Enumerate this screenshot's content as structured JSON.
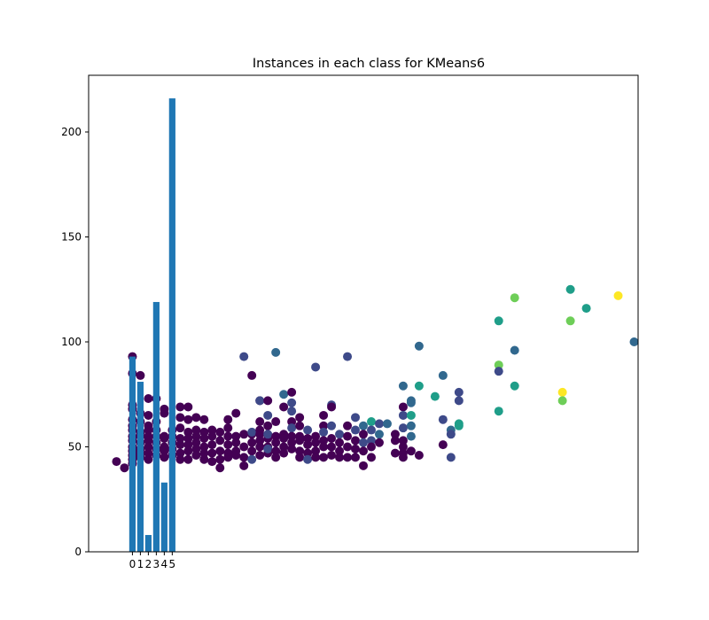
{
  "chart_data": {
    "type": "bar",
    "title": "Instances in each class for KMeans6",
    "xlabel": "",
    "ylabel": "",
    "categories": [
      "0",
      "1",
      "2",
      "3",
      "4",
      "5"
    ],
    "values": [
      93,
      81,
      8,
      119,
      33,
      216
    ],
    "bar_color": "#1f77b4",
    "ylim": [
      0,
      227
    ],
    "xlim": [
      -5.5,
      63.5
    ],
    "yticks": [
      0,
      50,
      100,
      150,
      200
    ],
    "grid": false,
    "scatter_overlay": {
      "colormap": "viridis",
      "points": [
        [
          -2,
          43,
          0
        ],
        [
          -1,
          40,
          0
        ],
        [
          0,
          93,
          0
        ],
        [
          0,
          85,
          0
        ],
        [
          0,
          70,
          0
        ],
        [
          0,
          68,
          0
        ],
        [
          0,
          63,
          0
        ],
        [
          0,
          60,
          0
        ],
        [
          0,
          58,
          0
        ],
        [
          0,
          55,
          0
        ],
        [
          0,
          53,
          0
        ],
        [
          0,
          50,
          0
        ],
        [
          0,
          48,
          0
        ],
        [
          0,
          46,
          0
        ],
        [
          0,
          44,
          0
        ],
        [
          0,
          42,
          0
        ],
        [
          1,
          84,
          0
        ],
        [
          1,
          66,
          0
        ],
        [
          1,
          62,
          0
        ],
        [
          1,
          57,
          0
        ],
        [
          1,
          55,
          0
        ],
        [
          1,
          52,
          0
        ],
        [
          1,
          49,
          0
        ],
        [
          1,
          47,
          0
        ],
        [
          1,
          45,
          0
        ],
        [
          2,
          73,
          0
        ],
        [
          2,
          65,
          0
        ],
        [
          2,
          60,
          0
        ],
        [
          2,
          58,
          0
        ],
        [
          2,
          55,
          0
        ],
        [
          2,
          53,
          0
        ],
        [
          2,
          50,
          0
        ],
        [
          2,
          47,
          0
        ],
        [
          2,
          44,
          0
        ],
        [
          3,
          73,
          0
        ],
        [
          3,
          62,
          0
        ],
        [
          3,
          58,
          0
        ],
        [
          3,
          55,
          0
        ],
        [
          3,
          52,
          0
        ],
        [
          3,
          49,
          0
        ],
        [
          3,
          46,
          0
        ],
        [
          4,
          68,
          0
        ],
        [
          4,
          66,
          0
        ],
        [
          4,
          55,
          0
        ],
        [
          4,
          54,
          0
        ],
        [
          4,
          50,
          0
        ],
        [
          4,
          48,
          0
        ],
        [
          4,
          45,
          0
        ],
        [
          5,
          58,
          0
        ],
        [
          5,
          55,
          0
        ],
        [
          5,
          52,
          0
        ],
        [
          5,
          49,
          0
        ],
        [
          5,
          46,
          0
        ],
        [
          6,
          69,
          0
        ],
        [
          6,
          64,
          0
        ],
        [
          6,
          59,
          0
        ],
        [
          6,
          54,
          0
        ],
        [
          6,
          51,
          0
        ],
        [
          6,
          47,
          0
        ],
        [
          6,
          44,
          0
        ],
        [
          7,
          69,
          0
        ],
        [
          7,
          63,
          0
        ],
        [
          7,
          57,
          0
        ],
        [
          7,
          54,
          0
        ],
        [
          7,
          51,
          0
        ],
        [
          7,
          48,
          0
        ],
        [
          7,
          44,
          0
        ],
        [
          8,
          64,
          0
        ],
        [
          8,
          58,
          0
        ],
        [
          8,
          55,
          0
        ],
        [
          8,
          52,
          0
        ],
        [
          8,
          49,
          0
        ],
        [
          8,
          46,
          0
        ],
        [
          9,
          63,
          0
        ],
        [
          9,
          57,
          0
        ],
        [
          9,
          54,
          0
        ],
        [
          9,
          50,
          0
        ],
        [
          9,
          47,
          0
        ],
        [
          9,
          44,
          0
        ],
        [
          10,
          58,
          0
        ],
        [
          10,
          55,
          0
        ],
        [
          10,
          51,
          0
        ],
        [
          10,
          47,
          0
        ],
        [
          10,
          43,
          0
        ],
        [
          11,
          57,
          0
        ],
        [
          11,
          53,
          0
        ],
        [
          11,
          48,
          0
        ],
        [
          11,
          44,
          0
        ],
        [
          11,
          40,
          0
        ],
        [
          12,
          63,
          0
        ],
        [
          12,
          59,
          0
        ],
        [
          12,
          55,
          0
        ],
        [
          12,
          51,
          0
        ],
        [
          12,
          47,
          0
        ],
        [
          12,
          45,
          0
        ],
        [
          13,
          66,
          0
        ],
        [
          13,
          55,
          0
        ],
        [
          13,
          52,
          0
        ],
        [
          13,
          48,
          0
        ],
        [
          13,
          46,
          0
        ],
        [
          14,
          56,
          0
        ],
        [
          14,
          50,
          0
        ],
        [
          14,
          45,
          0
        ],
        [
          14,
          41,
          0
        ],
        [
          14,
          93,
          1
        ],
        [
          15,
          84,
          0
        ],
        [
          15,
          56,
          0
        ],
        [
          15,
          52,
          0
        ],
        [
          15,
          48,
          0
        ],
        [
          15,
          57,
          1
        ],
        [
          15,
          44,
          1
        ],
        [
          16,
          72,
          0
        ],
        [
          16,
          62,
          0
        ],
        [
          16,
          58,
          0
        ],
        [
          16,
          56,
          0
        ],
        [
          16,
          53,
          0
        ],
        [
          16,
          50,
          0
        ],
        [
          16,
          46,
          0
        ],
        [
          16,
          72,
          1
        ],
        [
          17,
          72,
          0
        ],
        [
          17,
          60,
          0
        ],
        [
          17,
          54,
          0
        ],
        [
          17,
          50,
          0
        ],
        [
          17,
          47,
          0
        ],
        [
          17,
          65,
          1
        ],
        [
          17,
          56,
          1
        ],
        [
          17,
          49,
          1
        ],
        [
          18,
          95,
          2
        ],
        [
          18,
          62,
          0
        ],
        [
          18,
          55,
          0
        ],
        [
          18,
          52,
          0
        ],
        [
          18,
          48,
          0
        ],
        [
          18,
          45,
          0
        ],
        [
          19,
          75,
          2
        ],
        [
          19,
          69,
          0
        ],
        [
          19,
          56,
          0
        ],
        [
          19,
          54,
          0
        ],
        [
          19,
          50,
          0
        ],
        [
          19,
          47,
          0
        ],
        [
          20,
          76,
          0
        ],
        [
          20,
          71,
          1
        ],
        [
          20,
          67,
          1
        ],
        [
          20,
          62,
          0
        ],
        [
          20,
          59,
          1
        ],
        [
          20,
          55,
          0
        ],
        [
          20,
          52,
          0
        ],
        [
          20,
          49,
          0
        ],
        [
          21,
          64,
          0
        ],
        [
          21,
          60,
          0
        ],
        [
          21,
          55,
          0
        ],
        [
          21,
          53,
          0
        ],
        [
          21,
          48,
          0
        ],
        [
          21,
          45,
          0
        ],
        [
          22,
          58,
          1
        ],
        [
          22,
          54,
          0
        ],
        [
          22,
          51,
          0
        ],
        [
          22,
          47,
          0
        ],
        [
          22,
          44,
          1
        ],
        [
          23,
          88,
          1
        ],
        [
          23,
          55,
          0
        ],
        [
          23,
          52,
          0
        ],
        [
          23,
          48,
          0
        ],
        [
          23,
          45,
          0
        ],
        [
          24,
          65,
          0
        ],
        [
          24,
          60,
          0
        ],
        [
          24,
          57,
          1
        ],
        [
          24,
          53,
          0
        ],
        [
          24,
          50,
          0
        ],
        [
          24,
          45,
          0
        ],
        [
          25,
          70,
          1
        ],
        [
          25,
          69,
          0
        ],
        [
          25,
          60,
          1
        ],
        [
          25,
          54,
          0
        ],
        [
          25,
          50,
          0
        ],
        [
          25,
          46,
          0
        ],
        [
          26,
          56,
          1
        ],
        [
          26,
          52,
          0
        ],
        [
          26,
          48,
          0
        ],
        [
          26,
          45,
          0
        ],
        [
          27,
          93,
          1
        ],
        [
          27,
          60,
          0
        ],
        [
          27,
          55,
          0
        ],
        [
          27,
          50,
          0
        ],
        [
          27,
          45,
          0
        ],
        [
          28,
          64,
          1
        ],
        [
          28,
          58,
          1
        ],
        [
          28,
          53,
          0
        ],
        [
          28,
          49,
          0
        ],
        [
          28,
          45,
          0
        ],
        [
          29,
          60,
          2
        ],
        [
          29,
          56,
          0
        ],
        [
          29,
          52,
          1
        ],
        [
          29,
          48,
          0
        ],
        [
          29,
          41,
          0
        ],
        [
          30,
          62,
          3
        ],
        [
          30,
          58,
          1
        ],
        [
          30,
          53,
          1
        ],
        [
          30,
          50,
          0
        ],
        [
          30,
          45,
          0
        ],
        [
          31,
          61,
          1
        ],
        [
          31,
          56,
          2
        ],
        [
          31,
          52,
          0
        ],
        [
          32,
          61,
          2
        ],
        [
          33,
          56,
          0
        ],
        [
          33,
          53,
          0
        ],
        [
          33,
          47,
          0
        ],
        [
          34,
          79,
          2
        ],
        [
          34,
          69,
          0
        ],
        [
          34,
          65,
          1
        ],
        [
          34,
          59,
          1
        ],
        [
          34,
          53,
          0
        ],
        [
          34,
          50,
          0
        ],
        [
          34,
          47,
          0
        ],
        [
          34,
          45,
          0
        ],
        [
          35,
          72,
          2
        ],
        [
          35,
          71,
          2
        ],
        [
          35,
          65,
          3
        ],
        [
          35,
          60,
          2
        ],
        [
          35,
          55,
          2
        ],
        [
          35,
          48,
          0
        ],
        [
          36,
          98,
          2
        ],
        [
          36,
          79,
          3
        ],
        [
          36,
          46,
          0
        ],
        [
          38,
          74,
          3
        ],
        [
          39,
          84,
          2
        ],
        [
          39,
          63,
          1
        ],
        [
          39,
          51,
          0
        ],
        [
          40,
          58,
          2
        ],
        [
          40,
          56,
          1
        ],
        [
          40,
          45,
          1
        ],
        [
          41,
          76,
          1
        ],
        [
          41,
          72,
          1
        ],
        [
          41,
          61,
          3
        ],
        [
          41,
          60,
          3
        ],
        [
          46,
          110,
          3
        ],
        [
          46,
          89,
          4
        ],
        [
          46,
          86,
          1
        ],
        [
          46,
          67,
          3
        ],
        [
          48,
          121,
          4
        ],
        [
          48,
          96,
          2
        ],
        [
          48,
          79,
          3
        ],
        [
          54,
          76,
          5
        ],
        [
          54,
          72,
          4
        ],
        [
          55,
          125,
          3
        ],
        [
          55,
          110,
          4
        ],
        [
          57,
          116,
          3
        ],
        [
          61,
          122,
          5
        ],
        [
          63,
          100,
          2
        ]
      ]
    }
  }
}
